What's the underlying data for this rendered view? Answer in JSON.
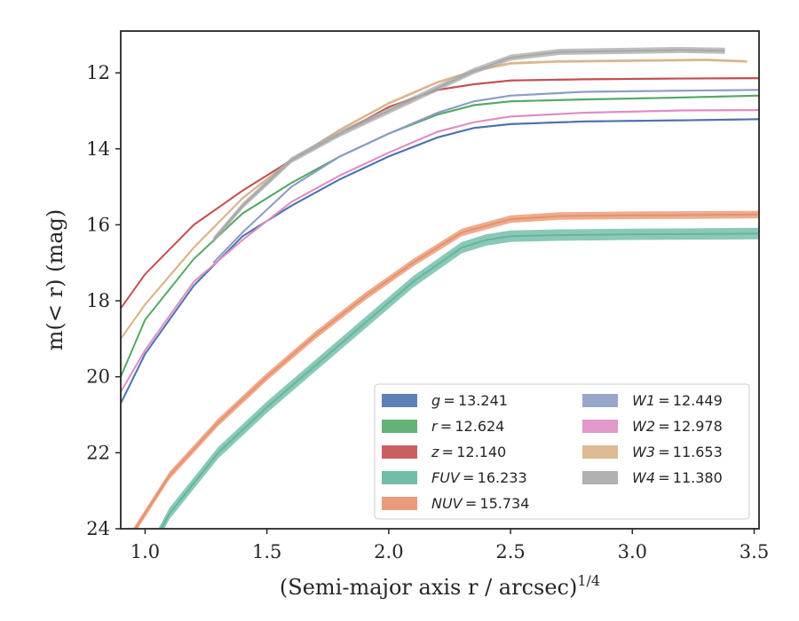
{
  "chart_data": {
    "type": "line",
    "xlabel": "(Semi-major axis r / arcsec)",
    "xlabel_sup": "1/4",
    "ylabel": "m(< r) (mag)",
    "xlim": [
      0.9,
      3.52
    ],
    "ylim": [
      24,
      10.9
    ],
    "y_inverted": true,
    "x_ticks": [
      1.0,
      1.5,
      2.0,
      2.5,
      3.0,
      3.5
    ],
    "x_tick_labels": [
      "1.0",
      "1.5",
      "2.0",
      "2.5",
      "3.0",
      "3.5"
    ],
    "y_ticks": [
      12,
      14,
      16,
      18,
      20,
      22,
      24
    ],
    "y_tick_labels": [
      "12",
      "14",
      "16",
      "18",
      "20",
      "22",
      "24"
    ],
    "grid": false,
    "legend_position": "lower-right",
    "series": [
      {
        "name": "g",
        "label": "g = 13.241",
        "color": "#4c72b0",
        "x": [
          0.9,
          1.0,
          1.2,
          1.4,
          1.6,
          1.8,
          2.0,
          2.2,
          2.35,
          2.5,
          2.8,
          3.2,
          3.52
        ],
        "y": [
          20.7,
          19.4,
          17.6,
          16.3,
          15.5,
          14.8,
          14.2,
          13.7,
          13.45,
          13.35,
          13.28,
          13.25,
          13.22
        ],
        "band": 0.05
      },
      {
        "name": "r",
        "label": "r = 12.624",
        "color": "#55a868",
        "x": [
          0.9,
          1.0,
          1.2,
          1.4,
          1.6,
          1.8,
          2.0,
          2.2,
          2.35,
          2.5,
          2.8,
          3.2,
          3.52
        ],
        "y": [
          20.0,
          18.5,
          16.9,
          15.7,
          14.9,
          14.2,
          13.6,
          13.1,
          12.85,
          12.75,
          12.7,
          12.65,
          12.6
        ],
        "band": 0.05
      },
      {
        "name": "z",
        "label": "z = 12.140",
        "color": "#c44e52",
        "x": [
          0.9,
          1.0,
          1.2,
          1.4,
          1.6,
          1.8,
          2.0,
          2.2,
          2.35,
          2.5,
          2.8,
          3.2,
          3.52
        ],
        "y": [
          18.2,
          17.3,
          16.0,
          15.1,
          14.3,
          13.6,
          12.9,
          12.45,
          12.3,
          12.2,
          12.17,
          12.15,
          12.14
        ],
        "band": 0.05
      },
      {
        "name": "FUV",
        "label": "FUV = 16.233",
        "color": "#64b5a0",
        "x": [
          0.9,
          1.1,
          1.3,
          1.5,
          1.7,
          1.9,
          2.1,
          2.3,
          2.4,
          2.5,
          2.7,
          3.0,
          3.3,
          3.52
        ],
        "y": [
          26.0,
          23.6,
          22.0,
          20.8,
          19.7,
          18.6,
          17.5,
          16.6,
          16.4,
          16.3,
          16.27,
          16.25,
          16.24,
          16.23
        ],
        "band": 0.3
      },
      {
        "name": "NUV",
        "label": "NUV = 15.734",
        "color": "#e8906a",
        "x": [
          0.9,
          1.1,
          1.3,
          1.5,
          1.7,
          1.9,
          2.1,
          2.3,
          2.5,
          2.7,
          3.0,
          3.3,
          3.52
        ],
        "y": [
          24.6,
          22.6,
          21.2,
          20.0,
          18.9,
          17.9,
          17.0,
          16.2,
          15.85,
          15.77,
          15.75,
          15.74,
          15.73
        ],
        "band": 0.2
      },
      {
        "name": "W1",
        "label": "W1 = 12.449",
        "color": "#8c9dc4",
        "x": [
          1.28,
          1.4,
          1.6,
          1.8,
          2.0,
          2.2,
          2.35,
          2.5,
          2.8,
          3.2,
          3.52
        ],
        "y": [
          17.0,
          16.2,
          15.0,
          14.2,
          13.6,
          13.05,
          12.75,
          12.6,
          12.5,
          12.47,
          12.45
        ],
        "band": 0.05
      },
      {
        "name": "W2",
        "label": "W2 = 12.978",
        "color": "#dd8ec2",
        "x": [
          0.9,
          1.0,
          1.2,
          1.4,
          1.6,
          1.8,
          2.0,
          2.2,
          2.35,
          2.5,
          2.8,
          3.2,
          3.52
        ],
        "y": [
          20.4,
          19.3,
          17.5,
          16.4,
          15.4,
          14.7,
          14.1,
          13.55,
          13.3,
          13.15,
          13.05,
          12.99,
          12.98
        ],
        "band": 0.05
      },
      {
        "name": "W3",
        "label": "W3 = 11.653",
        "color": "#d9b48a",
        "x": [
          0.9,
          1.0,
          1.2,
          1.4,
          1.6,
          1.8,
          2.0,
          2.2,
          2.35,
          2.5,
          2.7,
          3.0,
          3.3,
          3.47
        ],
        "y": [
          19.0,
          18.1,
          16.6,
          15.3,
          14.3,
          13.5,
          12.8,
          12.25,
          11.95,
          11.75,
          11.7,
          11.68,
          11.66,
          11.7
        ],
        "band": 0.07
      },
      {
        "name": "W4",
        "label": "W4 = 11.380",
        "color": "#a8a8a8",
        "x": [
          1.28,
          1.4,
          1.6,
          1.8,
          2.0,
          2.2,
          2.35,
          2.5,
          2.7,
          3.0,
          3.2,
          3.38
        ],
        "y": [
          16.4,
          15.5,
          14.3,
          13.6,
          13.0,
          12.4,
          11.95,
          11.6,
          11.45,
          11.42,
          11.4,
          11.42
        ],
        "band": 0.16
      }
    ]
  }
}
